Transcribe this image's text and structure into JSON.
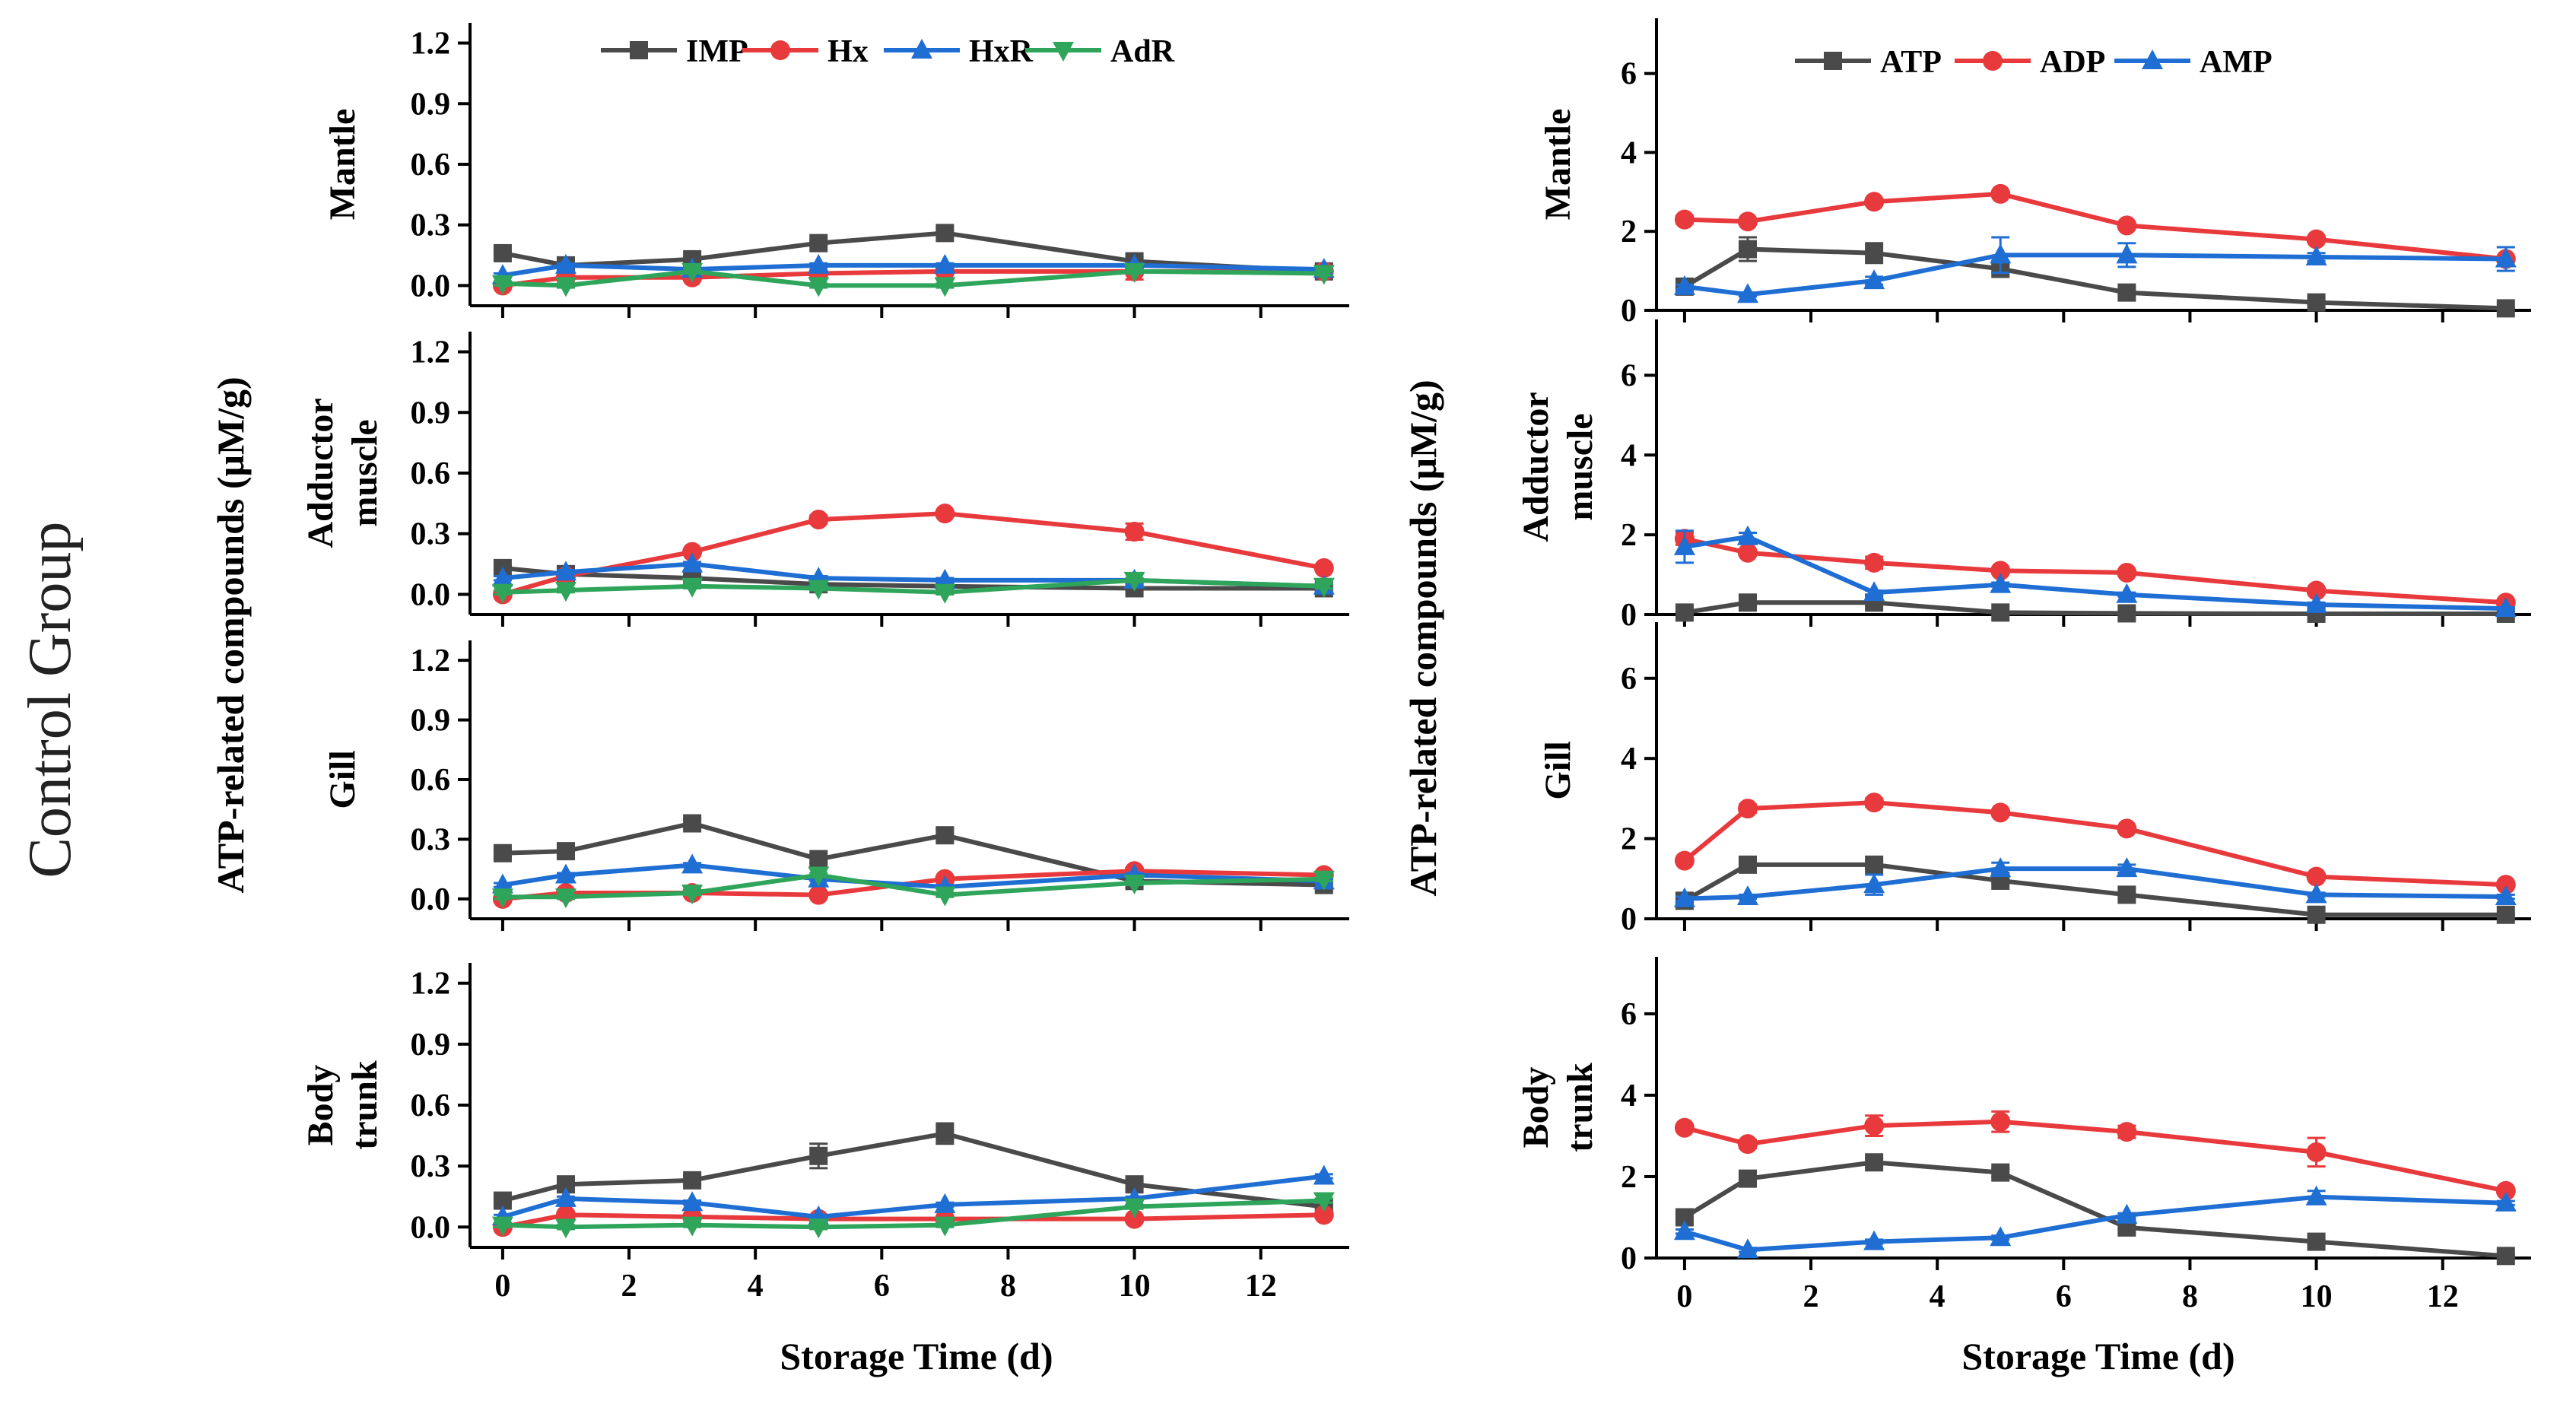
{
  "figure": {
    "group_label": "Control Group",
    "colors": {
      "gray": "#4a4a4a",
      "red": "#e8393c",
      "blue": "#1f6ed4",
      "green": "#2ea55a"
    }
  },
  "chart_data": [
    {
      "id": "left",
      "type": "line",
      "ylabel": "ATP-related compounds (μM/g)",
      "xlabel": "Storage Time (d)",
      "xlim": [
        -0.3,
        13.4
      ],
      "ylim": [
        -0.1,
        1.3
      ],
      "xticks": [
        "0",
        "2",
        "4",
        "6",
        "8",
        "10",
        "12"
      ],
      "xtick_values": [
        0,
        2,
        4,
        6,
        8,
        10,
        12
      ],
      "yticks": [
        "0.0",
        "0.3",
        "0.6",
        "0.9",
        "1.2"
      ],
      "ytick_values": [
        0,
        0.3,
        0.6,
        0.9,
        1.2
      ],
      "x": [
        0,
        1,
        3,
        5,
        7,
        10,
        13
      ],
      "legend": [
        {
          "name": "IMP",
          "color": "#4a4a4a",
          "marker": "square"
        },
        {
          "name": "Hx",
          "color": "#e8393c",
          "marker": "circle"
        },
        {
          "name": "HxR",
          "color": "#1f6ed4",
          "marker": "triangle-up"
        },
        {
          "name": "AdR",
          "color": "#2ea55a",
          "marker": "triangle-down"
        }
      ],
      "panels": [
        {
          "label_lines": [
            "Mantle"
          ],
          "series": [
            {
              "name": "IMP",
              "values": [
                0.16,
                0.1,
                0.13,
                0.21,
                0.26,
                0.12,
                0.07
              ],
              "errors": [
                0.01,
                0.02,
                0.01,
                0.01,
                0.01,
                0.02,
                0.01
              ]
            },
            {
              "name": "Hx",
              "values": [
                0.0,
                0.04,
                0.04,
                0.06,
                0.07,
                0.07,
                0.07
              ],
              "errors": [
                0.01,
                0.01,
                0.01,
                0.01,
                0.01,
                0.04,
                0.01
              ]
            },
            {
              "name": "HxR",
              "values": [
                0.05,
                0.1,
                0.08,
                0.1,
                0.1,
                0.1,
                0.08
              ],
              "errors": [
                0.01,
                0.01,
                0.01,
                0.01,
                0.01,
                0.01,
                0.01
              ]
            },
            {
              "name": "AdR",
              "values": [
                0.01,
                0.0,
                0.07,
                0.0,
                0.0,
                0.07,
                0.06
              ],
              "errors": [
                0.01,
                0.01,
                0.01,
                0.01,
                0.01,
                0.01,
                0.01
              ]
            }
          ]
        },
        {
          "label_lines": [
            "Adductor",
            "muscle"
          ],
          "series": [
            {
              "name": "IMP",
              "values": [
                0.13,
                0.1,
                0.08,
                0.05,
                0.04,
                0.03,
                0.03
              ],
              "errors": [
                0.01,
                0.01,
                0.01,
                0.01,
                0.01,
                0.01,
                0.01
              ]
            },
            {
              "name": "Hx",
              "values": [
                0.0,
                0.09,
                0.21,
                0.37,
                0.4,
                0.31,
                0.13
              ],
              "errors": [
                0.01,
                0.01,
                0.01,
                0.02,
                0.01,
                0.04,
                0.01
              ]
            },
            {
              "name": "HxR",
              "values": [
                0.08,
                0.11,
                0.15,
                0.08,
                0.07,
                0.07,
                0.04
              ],
              "errors": [
                0.01,
                0.01,
                0.01,
                0.01,
                0.01,
                0.01,
                0.01
              ]
            },
            {
              "name": "AdR",
              "values": [
                0.01,
                0.02,
                0.04,
                0.03,
                0.01,
                0.07,
                0.04
              ],
              "errors": [
                0.01,
                0.01,
                0.01,
                0.01,
                0.01,
                0.01,
                0.01
              ]
            }
          ]
        },
        {
          "label_lines": [
            "Gill"
          ],
          "series": [
            {
              "name": "IMP",
              "values": [
                0.23,
                0.24,
                0.38,
                0.2,
                0.32,
                0.09,
                0.07
              ],
              "errors": [
                0.02,
                0.02,
                0.02,
                0.02,
                0.03,
                0.01,
                0.01
              ]
            },
            {
              "name": "Hx",
              "values": [
                0.0,
                0.03,
                0.03,
                0.02,
                0.1,
                0.14,
                0.12
              ],
              "errors": [
                0.01,
                0.01,
                0.01,
                0.01,
                0.01,
                0.01,
                0.01
              ]
            },
            {
              "name": "HxR",
              "values": [
                0.07,
                0.12,
                0.17,
                0.1,
                0.06,
                0.12,
                0.09
              ],
              "errors": [
                0.01,
                0.01,
                0.01,
                0.01,
                0.01,
                0.01,
                0.01
              ]
            },
            {
              "name": "AdR",
              "values": [
                0.01,
                0.01,
                0.03,
                0.12,
                0.02,
                0.08,
                0.1
              ],
              "errors": [
                0.01,
                0.01,
                0.01,
                0.01,
                0.01,
                0.01,
                0.01
              ]
            }
          ]
        },
        {
          "label_lines": [
            "Body",
            "trunk"
          ],
          "series": [
            {
              "name": "IMP",
              "values": [
                0.13,
                0.21,
                0.23,
                0.35,
                0.46,
                0.21,
                0.1
              ],
              "errors": [
                0.01,
                0.02,
                0.02,
                0.06,
                0.05,
                0.02,
                0.01
              ]
            },
            {
              "name": "Hx",
              "values": [
                0.0,
                0.06,
                0.05,
                0.04,
                0.04,
                0.04,
                0.06
              ],
              "errors": [
                0.01,
                0.01,
                0.01,
                0.01,
                0.01,
                0.01,
                0.01
              ]
            },
            {
              "name": "HxR",
              "values": [
                0.05,
                0.14,
                0.12,
                0.05,
                0.11,
                0.14,
                0.25
              ],
              "errors": [
                0.01,
                0.01,
                0.01,
                0.01,
                0.01,
                0.01,
                0.01
              ]
            },
            {
              "name": "AdR",
              "values": [
                0.01,
                0.0,
                0.01,
                0.0,
                0.01,
                0.1,
                0.13
              ],
              "errors": [
                0.01,
                0.01,
                0.01,
                0.01,
                0.01,
                0.01,
                0.01
              ]
            }
          ]
        }
      ]
    },
    {
      "id": "right",
      "type": "line",
      "ylabel": "ATP-related compounds (μM/g)",
      "xlabel": "Storage Time (d)",
      "xlim": [
        -0.3,
        13.4
      ],
      "ylim": [
        0,
        7.4
      ],
      "xticks": [
        "0",
        "2",
        "4",
        "6",
        "8",
        "10",
        "12"
      ],
      "xtick_values": [
        0,
        2,
        4,
        6,
        8,
        10,
        12
      ],
      "yticks": [
        "0",
        "2",
        "4",
        "6"
      ],
      "ytick_values": [
        0,
        2,
        4,
        6
      ],
      "x": [
        0,
        1,
        3,
        5,
        7,
        10,
        13
      ],
      "legend": [
        {
          "name": "ATP",
          "color": "#4a4a4a",
          "marker": "square"
        },
        {
          "name": "ADP",
          "color": "#e8393c",
          "marker": "circle"
        },
        {
          "name": "AMP",
          "color": "#1f6ed4",
          "marker": "triangle-up"
        }
      ],
      "panels": [
        {
          "label_lines": [
            "Mantle"
          ],
          "series": [
            {
              "name": "ATP",
              "values": [
                0.6,
                1.55,
                1.45,
                1.05,
                0.45,
                0.2,
                0.05
              ],
              "errors": [
                0.05,
                0.3,
                0.25,
                0.1,
                0.05,
                0.05,
                0.02
              ]
            },
            {
              "name": "ADP",
              "values": [
                2.3,
                2.25,
                2.75,
                2.95,
                2.15,
                1.8,
                1.3
              ],
              "errors": [
                0.1,
                0.05,
                0.08,
                0.05,
                0.08,
                0.05,
                0.05
              ]
            },
            {
              "name": "AMP",
              "values": [
                0.6,
                0.4,
                0.75,
                1.4,
                1.4,
                1.35,
                1.3
              ],
              "errors": [
                0.05,
                0.05,
                0.1,
                0.45,
                0.3,
                0.1,
                0.3
              ]
            }
          ]
        },
        {
          "label_lines": [
            "Adductor",
            "muscle"
          ],
          "series": [
            {
              "name": "ATP",
              "values": [
                0.05,
                0.3,
                0.3,
                0.05,
                0.03,
                0.02,
                0.02
              ],
              "errors": [
                0.02,
                0.05,
                0.05,
                0.02,
                0.02,
                0.01,
                0.01
              ]
            },
            {
              "name": "ADP",
              "values": [
                1.9,
                1.55,
                1.3,
                1.1,
                1.05,
                0.6,
                0.3
              ],
              "errors": [
                0.15,
                0.05,
                0.15,
                0.05,
                0.05,
                0.05,
                0.05
              ]
            },
            {
              "name": "AMP",
              "values": [
                1.7,
                1.95,
                0.55,
                0.75,
                0.5,
                0.25,
                0.15
              ],
              "errors": [
                0.4,
                0.1,
                0.05,
                0.05,
                0.05,
                0.05,
                0.03
              ]
            }
          ]
        },
        {
          "label_lines": [
            "Gill"
          ],
          "series": [
            {
              "name": "ATP",
              "values": [
                0.45,
                1.35,
                1.35,
                0.95,
                0.6,
                0.1,
                0.1
              ],
              "errors": [
                0.05,
                0.1,
                0.1,
                0.05,
                0.05,
                0.02,
                0.02
              ]
            },
            {
              "name": "ADP",
              "values": [
                1.45,
                2.75,
                2.9,
                2.65,
                2.25,
                1.05,
                0.85
              ],
              "errors": [
                0.05,
                0.1,
                0.1,
                0.05,
                0.05,
                0.05,
                0.05
              ]
            },
            {
              "name": "AMP",
              "values": [
                0.5,
                0.55,
                0.85,
                1.25,
                1.25,
                0.6,
                0.55
              ],
              "errors": [
                0.05,
                0.05,
                0.25,
                0.15,
                0.1,
                0.05,
                0.05
              ]
            }
          ]
        },
        {
          "label_lines": [
            "Body",
            "trunk"
          ],
          "series": [
            {
              "name": "ATP",
              "values": [
                1.0,
                1.95,
                2.35,
                2.1,
                0.75,
                0.4,
                0.05
              ],
              "errors": [
                0.1,
                0.1,
                0.1,
                0.1,
                0.05,
                0.05,
                0.02
              ]
            },
            {
              "name": "ADP",
              "values": [
                3.2,
                2.8,
                3.25,
                3.35,
                3.1,
                2.6,
                1.65
              ],
              "errors": [
                0.05,
                0.1,
                0.25,
                0.25,
                0.15,
                0.35,
                0.05
              ]
            },
            {
              "name": "AMP",
              "values": [
                0.65,
                0.2,
                0.4,
                0.5,
                1.05,
                1.5,
                1.35
              ],
              "errors": [
                0.05,
                0.05,
                0.05,
                0.05,
                0.05,
                0.15,
                0.05
              ]
            }
          ]
        }
      ]
    }
  ]
}
